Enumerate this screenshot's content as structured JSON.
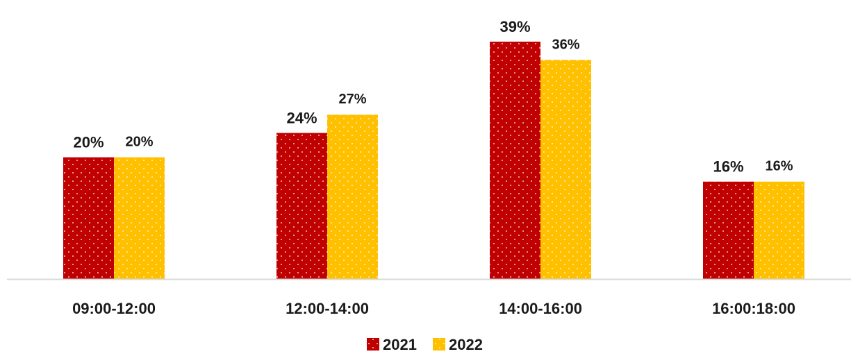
{
  "chart_data": {
    "type": "bar",
    "categories": [
      "09:00-12:00",
      "12:00-14:00",
      "14:00-16:00",
      "16:00:18:00"
    ],
    "series": [
      {
        "name": "2021",
        "values": [
          20,
          24,
          39,
          16
        ],
        "labels": [
          "20%",
          "24%",
          "39%",
          "16%"
        ],
        "color": "#C00000"
      },
      {
        "name": "2022",
        "values": [
          20,
          27,
          36,
          16
        ],
        "labels": [
          "20%",
          "27%",
          "36%",
          "16%"
        ],
        "color": "#FFC000"
      }
    ],
    "title": "",
    "xlabel": "",
    "ylabel": "",
    "ylim": [
      0,
      39
    ],
    "grid": false,
    "legend": "bottom-center",
    "axis_color": "#D9D9D9",
    "pattern": "dotted"
  }
}
